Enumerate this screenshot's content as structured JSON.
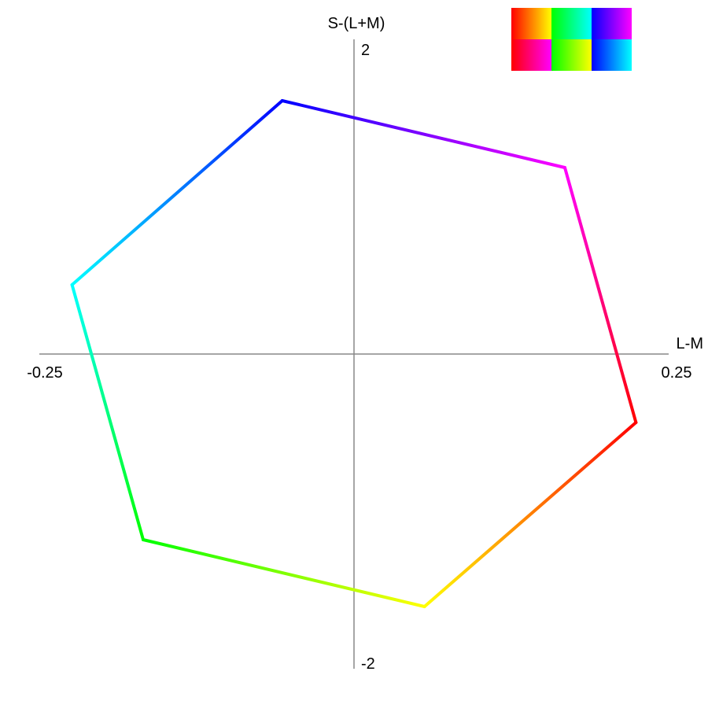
{
  "chart_data": {
    "type": "line",
    "title": "",
    "xlabel": "L-M",
    "ylabel": "S-(L+M)",
    "xlim": [
      -0.25,
      0.25
    ],
    "ylim": [
      -2,
      2
    ],
    "x_tick_labels": [
      "-0.25",
      "0.25"
    ],
    "y_tick_labels": [
      "2",
      "-2"
    ],
    "grid": false,
    "axis_color": "#888888",
    "closed": true,
    "vertices": [
      {
        "x": 0.224,
        "y": -0.435,
        "color": "#ff0000"
      },
      {
        "x": 0.056,
        "y": -1.605,
        "color": "#ffff00"
      },
      {
        "x": -0.1675,
        "y": -1.18,
        "color": "#00ff00"
      },
      {
        "x": -0.224,
        "y": 0.44,
        "color": "#00ffff"
      },
      {
        "x": -0.057,
        "y": 1.61,
        "color": "#0000ff"
      },
      {
        "x": 0.1675,
        "y": 1.185,
        "color": "#ff00ff"
      }
    ],
    "legend_swatches": [
      [
        {
          "from": "#ff0000",
          "to": "#ffff00"
        },
        {
          "from": "#00ff00",
          "to": "#00ffff"
        },
        {
          "from": "#0000ff",
          "to": "#ff00ff"
        }
      ],
      [
        {
          "from": "#ff0000",
          "to": "#ff00ff"
        },
        {
          "from": "#00ff00",
          "to": "#ffff00"
        },
        {
          "from": "#0000ff",
          "to": "#00ffff"
        }
      ]
    ],
    "legend_position": "top-right"
  }
}
